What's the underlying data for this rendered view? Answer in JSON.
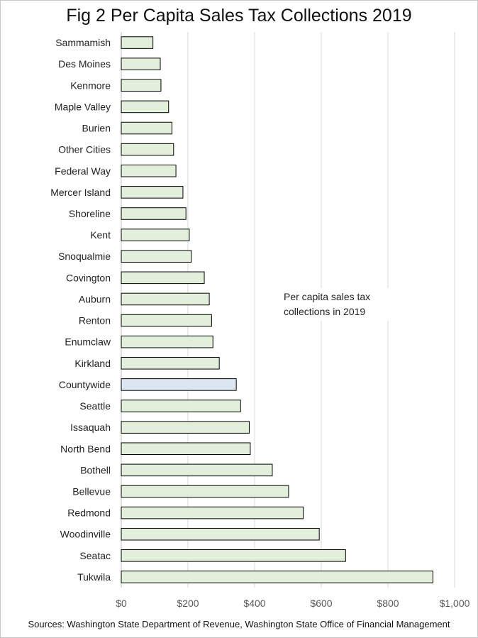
{
  "chart_data": {
    "type": "bar",
    "orientation": "horizontal",
    "title": "Fig 2 Per Capita Sales Tax Collections 2019",
    "categories": [
      "Sammamish",
      "Des Moines",
      "Kenmore",
      "Maple Valley",
      "Burien",
      "Other Cities",
      "Federal Way",
      "Mercer Island",
      "Shoreline",
      "Kent",
      "Snoqualmie",
      "Covington",
      "Auburn",
      "Renton",
      "Enumclaw",
      "Kirkland",
      "Countywide",
      "Seattle",
      "Issaquah",
      "North Bend",
      "Bothell",
      "Bellevue",
      "Redmond",
      "Woodinville",
      "Seatac",
      "Tukwila"
    ],
    "values": [
      95,
      117,
      119,
      142,
      152,
      157,
      164,
      185,
      194,
      204,
      210,
      249,
      264,
      271,
      275,
      294,
      345,
      358,
      384,
      387,
      453,
      502,
      546,
      594,
      673,
      935
    ],
    "highlight": "Countywide",
    "xlim": [
      0,
      1000
    ],
    "xticks": [
      "$0",
      "$200",
      "$400",
      "$600",
      "$800",
      "$1,000"
    ],
    "grid": "vertical",
    "annotation": "Per capita sales tax collections in 2019",
    "source": "Sources: Washington State Department of Revenue, Washington State Office of Financial Management",
    "colors": {
      "bar": "#e2efda",
      "highlight": "#dce6f1",
      "outline": "#000000",
      "grid": "#d9d9d9"
    }
  }
}
